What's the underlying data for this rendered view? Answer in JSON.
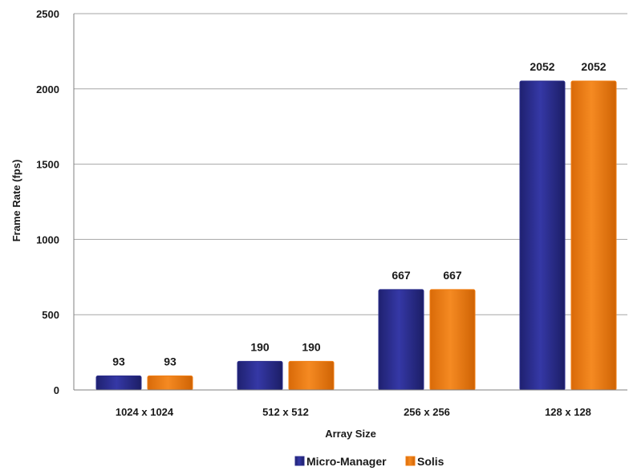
{
  "chart_data": {
    "type": "bar",
    "categories": [
      "1024 x 1024",
      "512 x 512",
      "256 x 256",
      "128 x 128"
    ],
    "series": [
      {
        "name": "Micro-Manager",
        "values": [
          93,
          190,
          667,
          2052
        ],
        "color": "#2b2d8c"
      },
      {
        "name": "Solis",
        "values": [
          93,
          190,
          667,
          2052
        ],
        "color": "#f07d12"
      }
    ],
    "xlabel": "Array Size",
    "ylabel": "Frame Rate (fps)",
    "ylim": [
      0,
      2500
    ],
    "yticks": [
      0,
      500,
      1000,
      1500,
      2000,
      2500
    ],
    "grid": true,
    "legend": "bottom-center",
    "data_labels": true
  }
}
